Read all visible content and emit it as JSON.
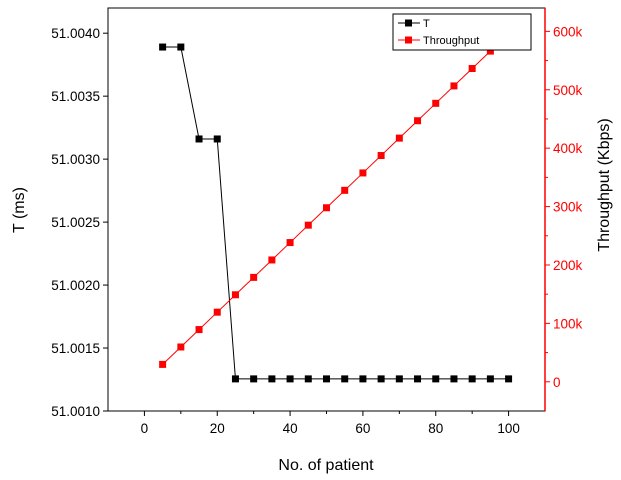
{
  "chart_data": {
    "type": "line",
    "title": "",
    "xlabel": "No. of patient",
    "ylabel_left": "T (ms)",
    "ylabel_right": "Throughput (Kbps)",
    "xlim": [
      -10,
      110
    ],
    "ylim_left": [
      51.001,
      51.0042
    ],
    "ylim_right": [
      -50000,
      640000
    ],
    "x_ticks": [
      0,
      20,
      40,
      60,
      80,
      100
    ],
    "y_left_ticks": [
      "51.0010",
      "51.0015",
      "51.0020",
      "51.0025",
      "51.0030",
      "51.0035",
      "51.0040"
    ],
    "y_right_ticks": [
      "0",
      "100k",
      "200k",
      "300k",
      "400k",
      "500k",
      "600k"
    ],
    "grid": false,
    "legend_position": "top-right",
    "x": [
      5,
      10,
      15,
      20,
      25,
      30,
      35,
      40,
      45,
      50,
      55,
      60,
      65,
      70,
      75,
      80,
      85,
      90,
      95,
      100
    ],
    "series": [
      {
        "name": "T",
        "axis": "left",
        "color": "#000000",
        "values": [
          51.00389,
          51.00389,
          51.00316,
          51.00316,
          51.001255,
          51.001255,
          51.001255,
          51.001255,
          51.001255,
          51.001255,
          51.001255,
          51.001255,
          51.001255,
          51.001255,
          51.001255,
          51.001255,
          51.001255,
          51.001255,
          51.001255,
          51.001255
        ]
      },
      {
        "name": "Throughput",
        "axis": "right",
        "color": "#ff0000",
        "values": [
          29800,
          59600,
          89400,
          119200,
          149000,
          178800,
          208600,
          238400,
          268200,
          298000,
          327800,
          357600,
          387400,
          417200,
          447000,
          476800,
          506600,
          536400,
          566200,
          596000
        ]
      }
    ]
  }
}
